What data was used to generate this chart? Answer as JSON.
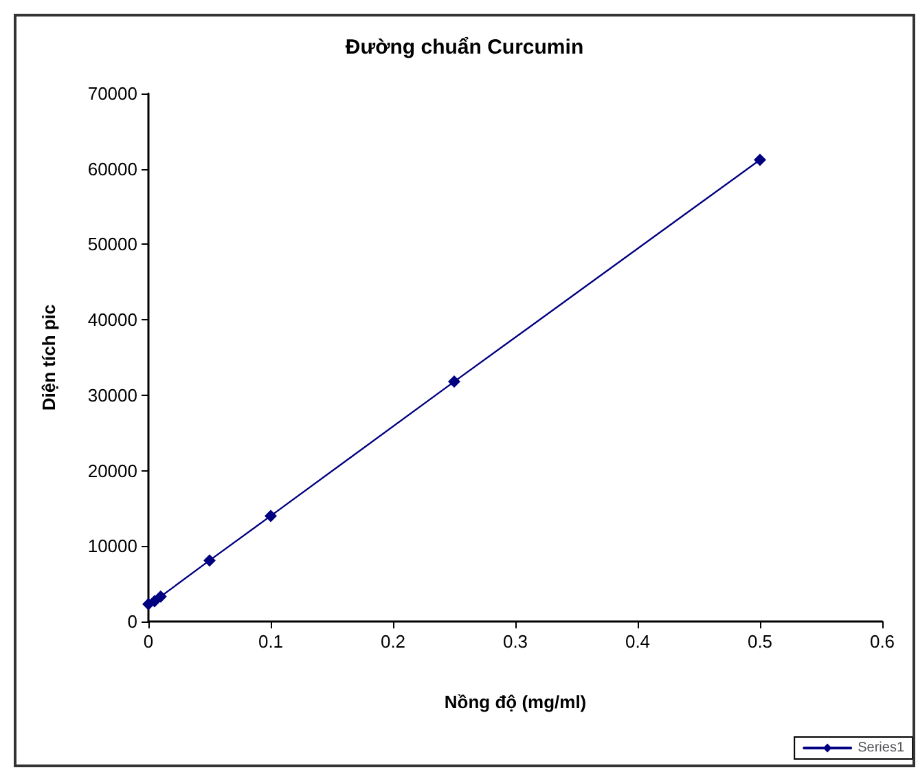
{
  "chart_data": {
    "type": "line",
    "title": "Đường chuẩn Curcumin",
    "xlabel": "Nồng độ (mg/ml)",
    "ylabel": "Diện tích pic",
    "series": [
      {
        "name": "Series1",
        "color": "#000080",
        "x": [
          0,
          0.005,
          0.01,
          0.05,
          0.1,
          0.25,
          0.5
        ],
        "values": [
          2300,
          2700,
          3300,
          8100,
          14000,
          31800,
          61200
        ]
      }
    ],
    "xlim": [
      0,
      0.6
    ],
    "xticks": [
      0,
      0.1,
      0.2,
      0.3,
      0.4,
      0.5,
      0.6
    ],
    "ylim": [
      0,
      70000
    ],
    "yticks": [
      0,
      10000,
      20000,
      30000,
      40000,
      50000,
      60000,
      70000
    ],
    "grid": false,
    "legend": "bottom right",
    "marker": "diamond",
    "line_style": "solid"
  }
}
